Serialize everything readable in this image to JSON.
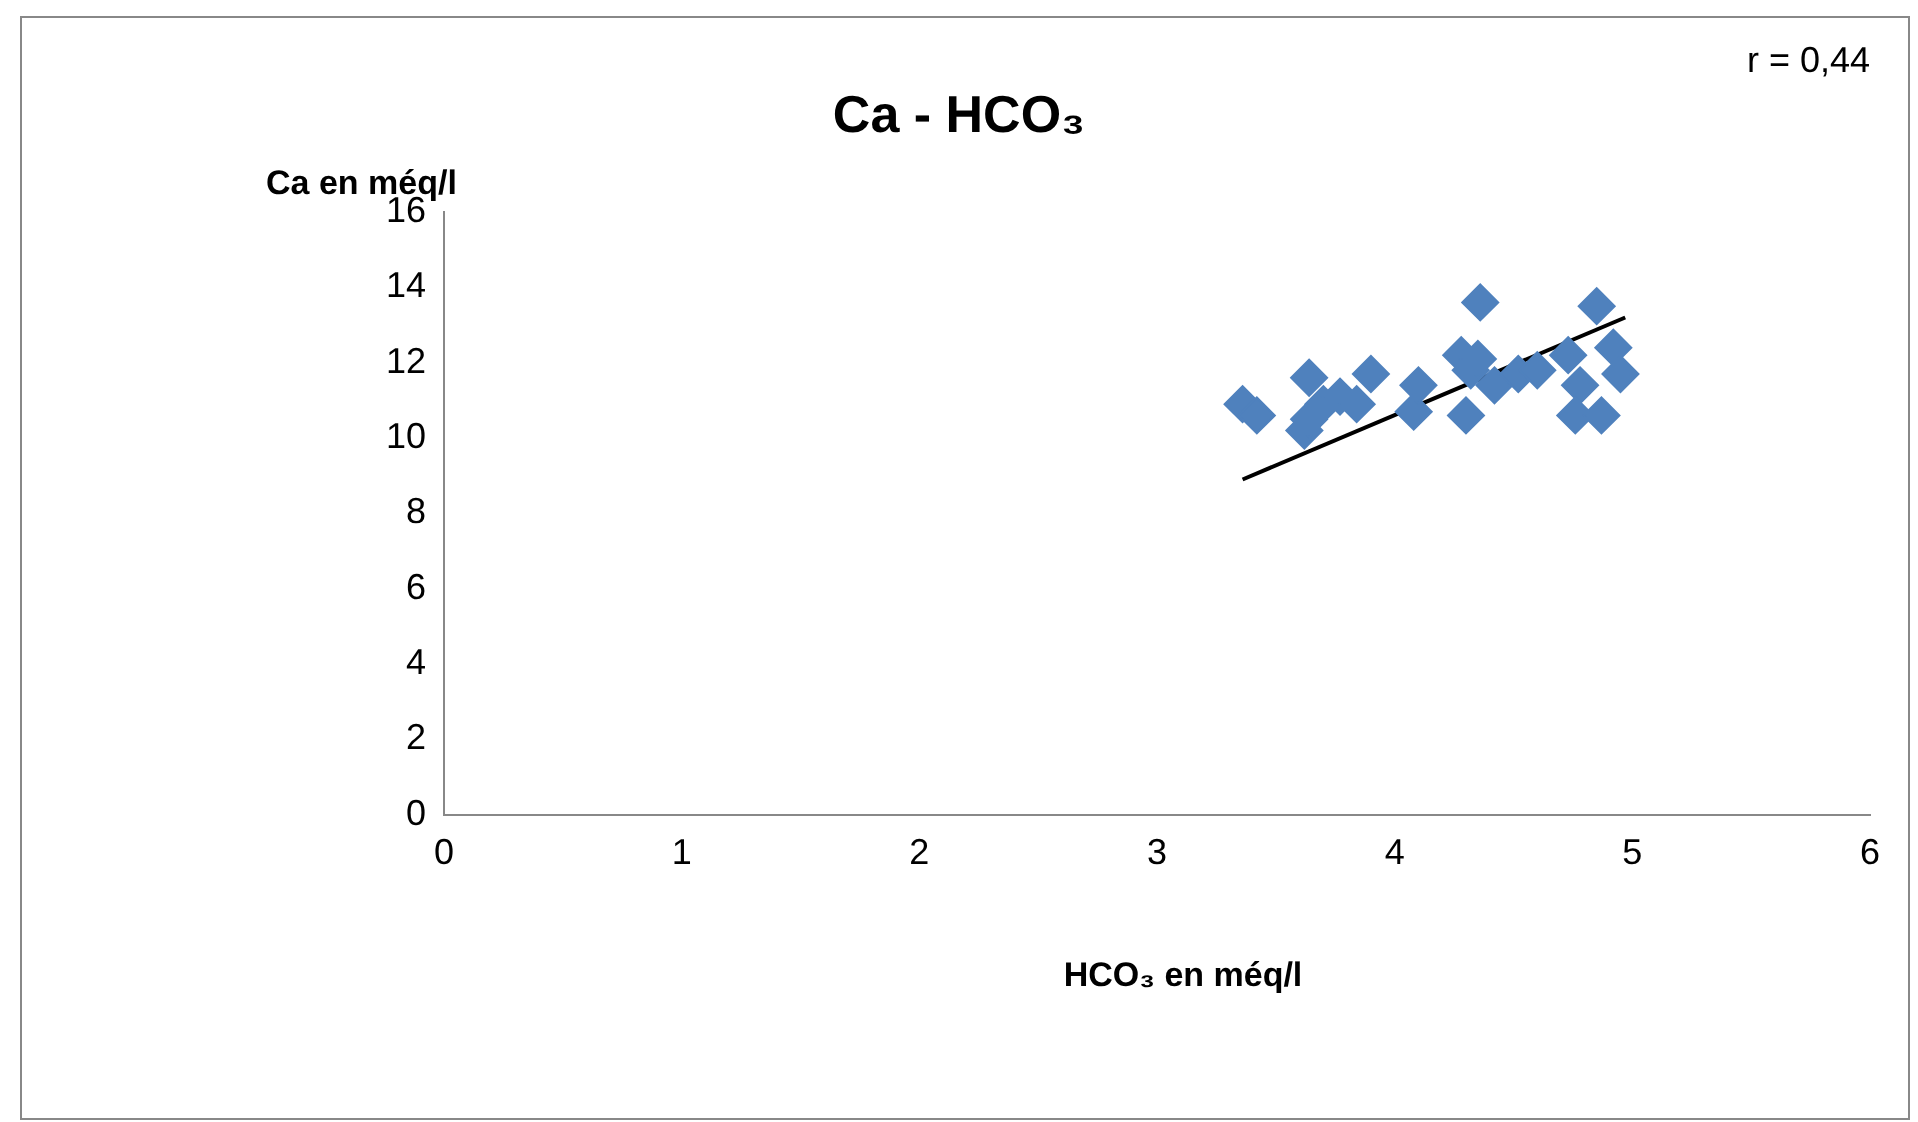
{
  "chart_data": {
    "type": "scatter",
    "title": "Ca - HCO₃",
    "xlabel": "HCO₃ en méq/l",
    "ylabel": "Ca en méq/l",
    "annotations": [
      "r = 0,44"
    ],
    "xlim": [
      0,
      6
    ],
    "xticks": [
      0,
      1,
      2,
      3,
      4,
      5,
      6
    ],
    "ylim": [
      0,
      16
    ],
    "yticks": [
      0,
      2,
      4,
      6,
      8,
      10,
      12,
      14,
      16
    ],
    "grid": false,
    "legend": false,
    "marker": "diamond",
    "series": [
      {
        "color": "#4f81bd",
        "x": [
          3.36,
          3.42,
          3.62,
          3.64,
          3.64,
          3.7,
          3.77,
          3.84,
          3.9,
          4.08,
          4.1,
          4.28,
          4.3,
          4.32,
          4.35,
          4.36,
          4.42,
          4.52,
          4.6,
          4.73,
          4.78,
          4.76,
          4.87,
          4.85,
          4.92,
          4.95
        ],
        "values": [
          10.9,
          10.6,
          10.2,
          11.6,
          10.5,
          10.9,
          11.1,
          10.9,
          11.7,
          10.7,
          11.4,
          12.2,
          10.6,
          11.8,
          12.1,
          13.6,
          11.4,
          11.7,
          11.8,
          12.2,
          11.4,
          10.6,
          10.6,
          13.5,
          12.4,
          11.7
        ]
      },
      {
        "type": "line",
        "marker": "none",
        "color": "#000000",
        "x": [
          3.36,
          4.97
        ],
        "values": [
          8.9,
          13.2
        ]
      }
    ]
  }
}
